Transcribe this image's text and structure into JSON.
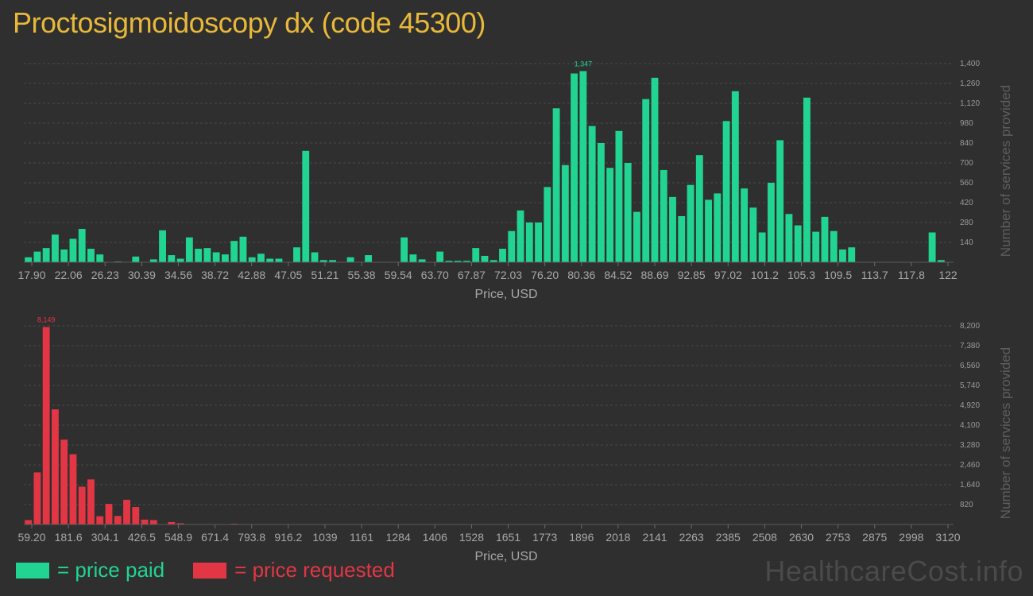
{
  "title": "Proctosigmoidoscopy dx (code 45300)",
  "watermark": "HealthcareCost.info",
  "legend": [
    {
      "label": "= price paid",
      "color": "#22d492"
    },
    {
      "label": "= price requested",
      "color": "#e23645"
    }
  ],
  "chart_data": [
    {
      "type": "bar",
      "name": "price-paid",
      "color": "#22d492",
      "xlabel": "Price, USD",
      "ylabel": "Number of services provided",
      "ylim": [
        0,
        1400
      ],
      "yticks": [
        "140",
        "280",
        "420",
        "560",
        "700",
        "840",
        "980",
        "1,120",
        "1,260",
        "1,400"
      ],
      "xticks": [
        "17.90",
        "22.06",
        "26.23",
        "30.39",
        "34.56",
        "38.72",
        "42.88",
        "47.05",
        "51.21",
        "55.38",
        "59.54",
        "63.70",
        "67.87",
        "72.03",
        "76.20",
        "80.36",
        "84.52",
        "88.69",
        "92.85",
        "97.02",
        "101.2",
        "105.3",
        "109.5",
        "113.7",
        "117.8",
        "122"
      ],
      "peak_label": "1,347",
      "grid": true,
      "values": [
        35,
        75,
        100,
        195,
        90,
        165,
        235,
        95,
        55,
        0,
        5,
        0,
        40,
        0,
        20,
        225,
        50,
        25,
        175,
        95,
        100,
        70,
        55,
        150,
        180,
        35,
        60,
        25,
        25,
        0,
        105,
        785,
        70,
        15,
        15,
        0,
        35,
        0,
        50,
        0,
        0,
        0,
        175,
        55,
        20,
        0,
        75,
        10,
        10,
        10,
        100,
        45,
        15,
        95,
        220,
        365,
        280,
        280,
        530,
        1085,
        685,
        1330,
        1347,
        960,
        840,
        665,
        925,
        700,
        355,
        1150,
        1300,
        650,
        460,
        325,
        545,
        755,
        440,
        485,
        995,
        1205,
        520,
        385,
        210,
        560,
        860,
        340,
        260,
        1160,
        215,
        320,
        220,
        90,
        105,
        0,
        0,
        0,
        0,
        0,
        0,
        0,
        0,
        210,
        15
      ]
    },
    {
      "type": "bar",
      "name": "price-requested",
      "color": "#e23645",
      "xlabel": "Price, USD",
      "ylabel": "Number of services provided",
      "ylim": [
        0,
        8200
      ],
      "yticks": [
        "820",
        "1,640",
        "2,460",
        "3,280",
        "4,100",
        "4,920",
        "5,740",
        "6,560",
        "7,380",
        "8,200"
      ],
      "xticks": [
        "59.20",
        "181.6",
        "304.1",
        "426.5",
        "548.9",
        "671.4",
        "793.8",
        "916.2",
        "1039",
        "1161",
        "1284",
        "1406",
        "1528",
        "1651",
        "1773",
        "1896",
        "2018",
        "2141",
        "2263",
        "2385",
        "2508",
        "2630",
        "2753",
        "2875",
        "2998",
        "3120"
      ],
      "peak_label": "8,149",
      "grid": true,
      "values": [
        180,
        2150,
        8149,
        4750,
        3500,
        2900,
        1560,
        1860,
        340,
        850,
        350,
        1020,
        720,
        200,
        180,
        0,
        100,
        50,
        0,
        0,
        0,
        0,
        0,
        30,
        0,
        0,
        0,
        0,
        0,
        0,
        0,
        0,
        0,
        0,
        0,
        0,
        0,
        0,
        0,
        0,
        0,
        0,
        0,
        0,
        0,
        0,
        0,
        0,
        0,
        0,
        0,
        0,
        0,
        0,
        0,
        0,
        0,
        0,
        0,
        0,
        0,
        0,
        0,
        0,
        0,
        0,
        0,
        0,
        0,
        0,
        0,
        0,
        0,
        0,
        0,
        0,
        0,
        0,
        0,
        0,
        0,
        0,
        0,
        0,
        0,
        0,
        0,
        0,
        0,
        0,
        0,
        0,
        0,
        0,
        0,
        0,
        0,
        0,
        0,
        0,
        0,
        0,
        0
      ]
    }
  ]
}
